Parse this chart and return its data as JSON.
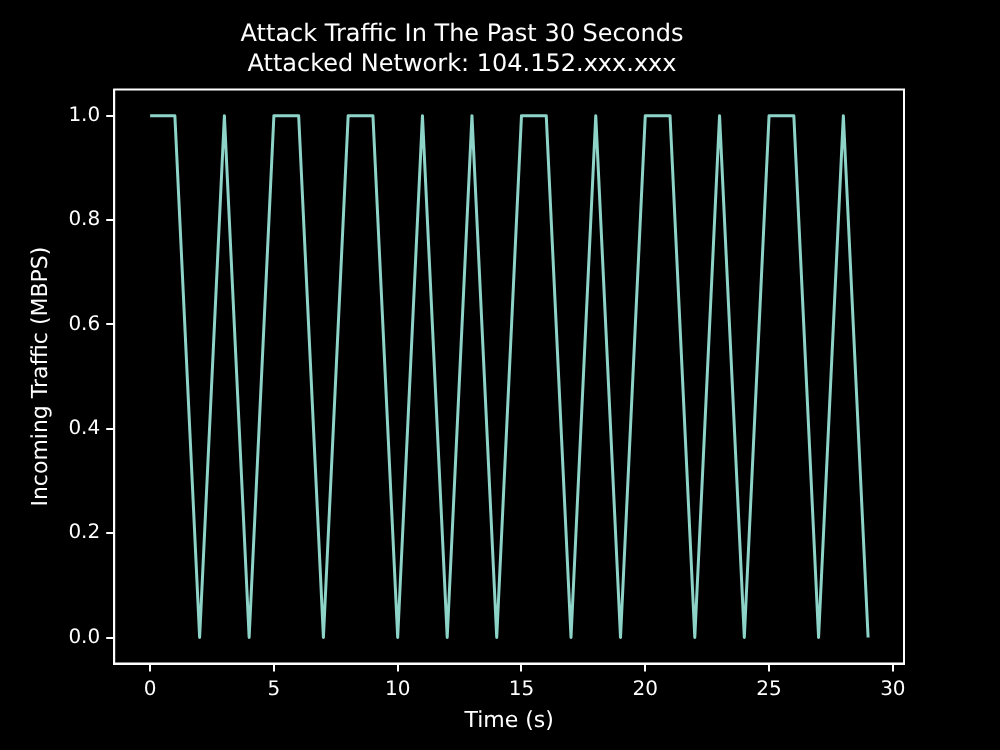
{
  "chart_data": {
    "type": "line",
    "title": "Attack Traffic In The Past 30 Seconds",
    "subtitle": "Attacked Network: 104.152.xxx.xxx",
    "xlabel": "Time (s)",
    "ylabel": "Incoming Traffic (MBPS)",
    "x": [
      0,
      1,
      2,
      3,
      4,
      5,
      6,
      7,
      8,
      9,
      10,
      11,
      12,
      13,
      14,
      15,
      16,
      17,
      18,
      19,
      20,
      21,
      22,
      23,
      24,
      25,
      26,
      27,
      28,
      29
    ],
    "series": [
      {
        "color": "#8dd3c7",
        "values": [
          1,
          1,
          0,
          1,
          0,
          1,
          1,
          0,
          1,
          1,
          0,
          1,
          0,
          1,
          0,
          1,
          1,
          0,
          1,
          0,
          1,
          1,
          0,
          1,
          0,
          1,
          1,
          0,
          1,
          0
        ]
      }
    ],
    "xlim": [
      -1.45,
      30.45
    ],
    "ylim": [
      -0.05,
      1.05
    ],
    "xticks": [
      0,
      5,
      10,
      15,
      20,
      25,
      30
    ],
    "yticks": [
      {
        "value": 0,
        "label": "0.0"
      },
      {
        "value": 0.2,
        "label": "0.2"
      },
      {
        "value": 0.4,
        "label": "0.4"
      },
      {
        "value": 0.6,
        "label": "0.6"
      },
      {
        "value": 0.8,
        "label": "0.8"
      },
      {
        "value": 1,
        "label": "1.0"
      }
    ],
    "grid": false,
    "legend": false,
    "marker": "none",
    "line_style": "solid"
  }
}
